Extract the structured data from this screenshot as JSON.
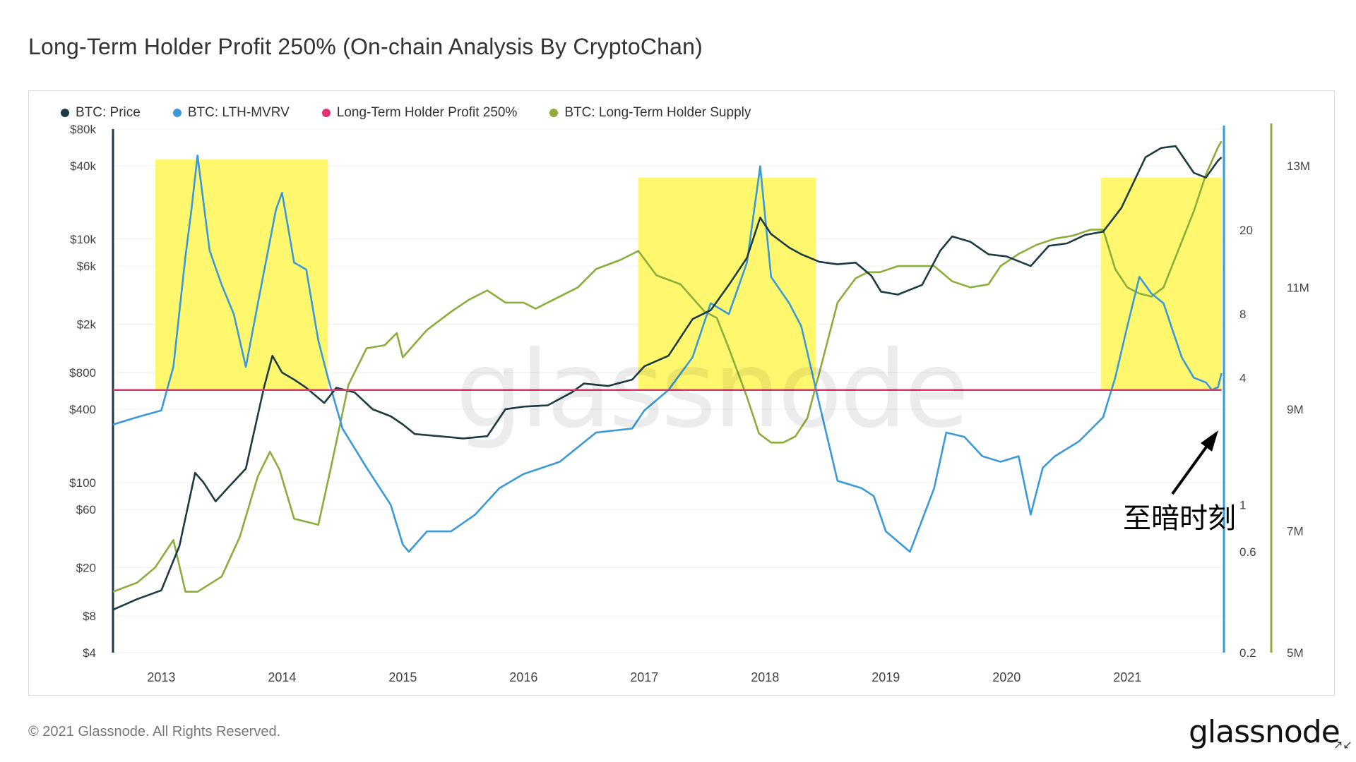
{
  "title": "Long-Term Holder Profit 250% (On-chain Analysis By CryptoChan)",
  "legend": [
    {
      "label": "BTC: Price",
      "color": "#1d3b44"
    },
    {
      "label": "BTC: LTH-MVRV",
      "color": "#3a9ad9"
    },
    {
      "label": "Long-Term Holder Profit 250%",
      "color": "#e2336b"
    },
    {
      "label": "BTC: Long-Term Holder Supply",
      "color": "#8aae3c"
    }
  ],
  "footer": "© 2021 Glassnode. All Rights Reserved.",
  "brand": "glassnode",
  "watermark": "glassnode",
  "annotation": "至暗时刻",
  "chart_data": {
    "type": "line",
    "x_ticks": [
      "2013",
      "2014",
      "2015",
      "2016",
      "2017",
      "2018",
      "2019",
      "2020",
      "2021"
    ],
    "y_price_ticks": [
      "$80k",
      "$40k",
      "$10k",
      "$6k",
      "$2k",
      "$800",
      "$400",
      "$100",
      "$60",
      "$20",
      "$8",
      "$4"
    ],
    "y_mvrv_ticks": [
      "20",
      "8",
      "4",
      "1",
      "0.6",
      "0.2"
    ],
    "y_supply_ticks": [
      "13M",
      "11M",
      "9M",
      "7M",
      "5M"
    ],
    "price_scale": "log",
    "mvrv_scale": "log",
    "price_range": [
      4,
      80000
    ],
    "mvrv_range": [
      0.2,
      60
    ],
    "supply_range": [
      5000000,
      13600000
    ],
    "x_range": [
      2012.6,
      2021.8
    ],
    "threshold": {
      "name": "Long-Term Holder Profit 250%",
      "value": 3.5
    },
    "highlight_periods": [
      {
        "start": 2012.95,
        "end": 2014.38,
        "top_price": 45000
      },
      {
        "start": 2016.95,
        "end": 2018.42,
        "top_price": 32000
      },
      {
        "start": 2020.78,
        "end": 2021.78,
        "top_price": 32000
      }
    ],
    "series": [
      {
        "name": "BTC: Price",
        "axis": "price",
        "x": [
          2012.6,
          2012.8,
          2013.0,
          2013.15,
          2013.28,
          2013.35,
          2013.45,
          2013.55,
          2013.7,
          2013.85,
          2013.92,
          2014.0,
          2014.1,
          2014.2,
          2014.35,
          2014.45,
          2014.6,
          2014.75,
          2014.9,
          2015.0,
          2015.1,
          2015.3,
          2015.5,
          2015.7,
          2015.85,
          2016.0,
          2016.2,
          2016.4,
          2016.5,
          2016.7,
          2016.9,
          2017.0,
          2017.2,
          2017.4,
          2017.55,
          2017.7,
          2017.85,
          2017.96,
          2018.05,
          2018.2,
          2018.3,
          2018.45,
          2018.6,
          2018.75,
          2018.88,
          2018.96,
          2019.1,
          2019.3,
          2019.45,
          2019.55,
          2019.7,
          2019.85,
          2020.0,
          2020.2,
          2020.35,
          2020.5,
          2020.65,
          2020.8,
          2020.95,
          2021.05,
          2021.15,
          2021.28,
          2021.4,
          2021.55,
          2021.65,
          2021.75,
          2021.78
        ],
        "y": [
          9,
          11,
          13,
          30,
          120,
          100,
          70,
          90,
          130,
          600,
          1100,
          800,
          700,
          600,
          450,
          600,
          550,
          400,
          350,
          300,
          250,
          240,
          230,
          240,
          400,
          420,
          430,
          550,
          650,
          620,
          700,
          900,
          1100,
          2200,
          2600,
          4200,
          7000,
          15000,
          11000,
          8500,
          7500,
          6500,
          6200,
          6400,
          5000,
          3700,
          3500,
          4200,
          8000,
          10500,
          9500,
          7500,
          7200,
          6000,
          8800,
          9200,
          10800,
          11500,
          18000,
          29000,
          47000,
          56000,
          58000,
          35000,
          32000,
          44000,
          47000
        ]
      },
      {
        "name": "BTC: LTH-MVRV",
        "axis": "mvrv",
        "x": [
          2012.6,
          2012.8,
          2013.0,
          2013.1,
          2013.2,
          2013.25,
          2013.3,
          2013.4,
          2013.5,
          2013.6,
          2013.7,
          2013.8,
          2013.95,
          2014.0,
          2014.1,
          2014.2,
          2014.3,
          2014.38,
          2014.5,
          2014.7,
          2014.9,
          2015.0,
          2015.05,
          2015.2,
          2015.4,
          2015.6,
          2015.8,
          2016.0,
          2016.3,
          2016.6,
          2016.9,
          2017.0,
          2017.2,
          2017.4,
          2017.55,
          2017.7,
          2017.85,
          2017.96,
          2018.05,
          2018.2,
          2018.3,
          2018.45,
          2018.6,
          2018.8,
          2018.9,
          2019.0,
          2019.2,
          2019.4,
          2019.5,
          2019.65,
          2019.8,
          2019.95,
          2020.1,
          2020.2,
          2020.3,
          2020.4,
          2020.6,
          2020.8,
          2020.9,
          2021.0,
          2021.1,
          2021.2,
          2021.3,
          2021.45,
          2021.55,
          2021.65,
          2021.7,
          2021.75,
          2021.78
        ],
        "y": [
          2.4,
          2.6,
          2.8,
          4.5,
          15,
          25,
          45,
          16,
          11,
          8,
          4.5,
          9,
          25,
          30,
          14,
          13,
          6,
          4,
          2.3,
          1.5,
          1.0,
          0.65,
          0.6,
          0.75,
          0.75,
          0.9,
          1.2,
          1.4,
          1.6,
          2.2,
          2.3,
          2.8,
          3.5,
          5,
          9,
          8,
          14,
          40,
          12,
          9,
          7,
          3,
          1.3,
          1.2,
          1.1,
          0.75,
          0.6,
          1.2,
          2.2,
          2.1,
          1.7,
          1.6,
          1.7,
          0.9,
          1.5,
          1.7,
          2.0,
          2.6,
          4,
          7,
          12,
          10,
          9,
          5,
          4,
          3.8,
          3.5,
          3.6,
          4.2
        ]
      },
      {
        "name": "Long-Term Holder Profit 250%",
        "axis": "mvrv",
        "x": [
          2012.6,
          2021.78
        ],
        "y": [
          3.5,
          3.5
        ]
      },
      {
        "name": "BTC: Long-Term Holder Supply",
        "axis": "supply",
        "x": [
          2012.6,
          2012.8,
          2012.95,
          2013.1,
          2013.2,
          2013.3,
          2013.5,
          2013.65,
          2013.8,
          2013.9,
          2013.98,
          2014.1,
          2014.2,
          2014.3,
          2014.4,
          2014.55,
          2014.7,
          2014.85,
          2014.95,
          2015.0,
          2015.2,
          2015.4,
          2015.55,
          2015.7,
          2015.85,
          2016.0,
          2016.1,
          2016.3,
          2016.45,
          2016.6,
          2016.8,
          2016.95,
          2017.1,
          2017.3,
          2017.5,
          2017.6,
          2017.7,
          2017.85,
          2017.95,
          2018.05,
          2018.15,
          2018.25,
          2018.35,
          2018.45,
          2018.6,
          2018.75,
          2018.85,
          2018.95,
          2019.1,
          2019.25,
          2019.4,
          2019.55,
          2019.7,
          2019.85,
          2019.95,
          2020.1,
          2020.25,
          2020.4,
          2020.55,
          2020.7,
          2020.8,
          2020.9,
          2021.0,
          2021.1,
          2021.2,
          2021.3,
          2021.4,
          2021.55,
          2021.65,
          2021.75,
          2021.78
        ],
        "y": [
          6.0,
          6.15,
          6.4,
          6.85,
          6.0,
          6.0,
          6.25,
          6.9,
          7.9,
          8.3,
          8.0,
          7.2,
          7.15,
          7.1,
          8.0,
          9.4,
          10.0,
          10.05,
          10.25,
          9.85,
          10.3,
          10.6,
          10.8,
          10.95,
          10.75,
          10.75,
          10.65,
          10.85,
          11.0,
          11.3,
          11.45,
          11.6,
          11.2,
          11.05,
          10.6,
          10.5,
          10.0,
          9.2,
          8.6,
          8.45,
          8.45,
          8.55,
          8.85,
          9.6,
          10.75,
          11.15,
          11.25,
          11.25,
          11.35,
          11.35,
          11.35,
          11.1,
          11.0,
          11.05,
          11.35,
          11.55,
          11.7,
          11.8,
          11.85,
          11.95,
          11.95,
          11.3,
          11.0,
          10.9,
          10.85,
          11.0,
          11.5,
          12.25,
          12.85,
          13.3,
          13.4
        ]
      }
    ]
  }
}
